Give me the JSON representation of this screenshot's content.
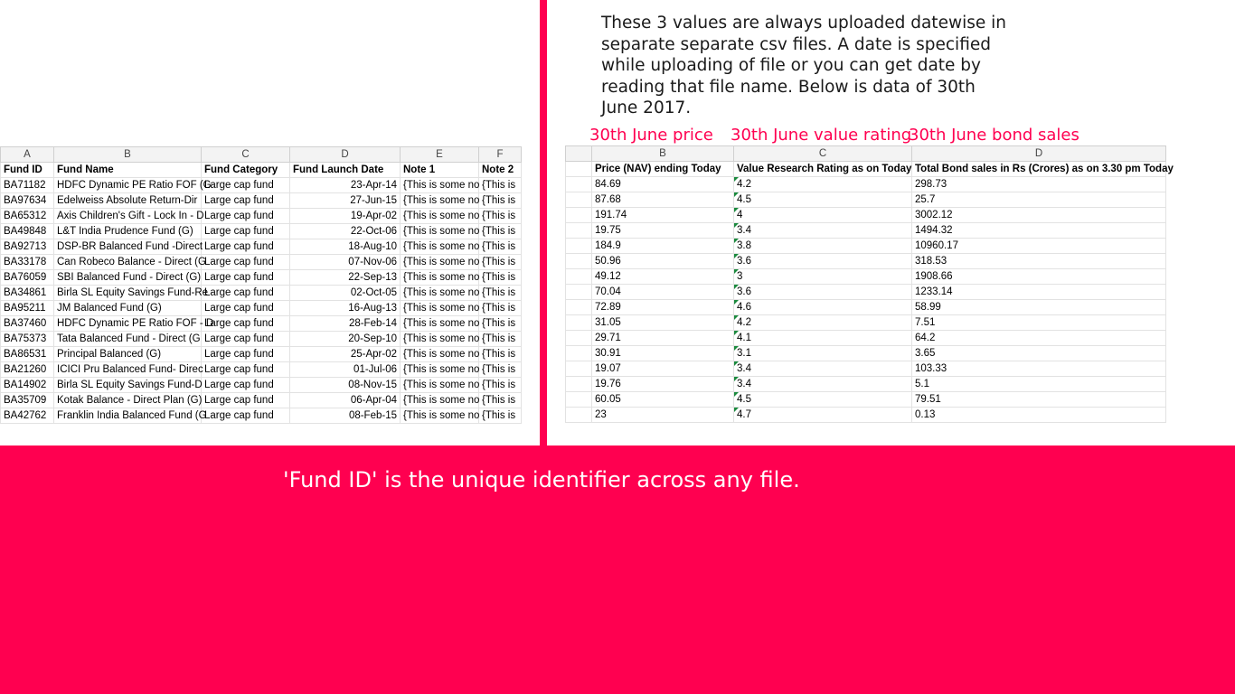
{
  "intro_text": "These 3 values are always uploaded datewise in separate separate csv files. A date is specified while uploading of file or you can get date by reading that file name. Below is data of 30th June 2017.",
  "captions": [
    "30th June price",
    "30th June value rating",
    "30th June bond sales"
  ],
  "left_sheet": {
    "column_letters": [
      "A",
      "B",
      "C",
      "D",
      "E",
      "F"
    ],
    "headers": [
      "Fund ID",
      "Fund Name",
      "Fund Category",
      "Fund Launch Date",
      "Note 1",
      "Note 2"
    ],
    "rows": [
      [
        "BA71182",
        "HDFC Dynamic PE Ratio FOF (G",
        "Large cap fund",
        "23-Apr-14",
        "{This is some no",
        "{This is"
      ],
      [
        "BA97634",
        "Edelweiss Absolute Return-Dir",
        "Large cap fund",
        "27-Jun-15",
        "{This is some no",
        "{This is"
      ],
      [
        "BA65312",
        "Axis Children's Gift - Lock In - D",
        "Large cap fund",
        "19-Apr-02",
        "{This is some no",
        "{This is"
      ],
      [
        "BA49848",
        "L&T India Prudence Fund (G)",
        "Large cap fund",
        "22-Oct-06",
        "{This is some no",
        "{This is"
      ],
      [
        "BA92713",
        "DSP-BR Balanced Fund -Direct",
        "Large cap fund",
        "18-Aug-10",
        "{This is some no",
        "{This is"
      ],
      [
        "BA33178",
        "Can Robeco Balance - Direct (G",
        "Large cap fund",
        "07-Nov-06",
        "{This is some no",
        "{This is"
      ],
      [
        "BA76059",
        "SBI Balanced Fund - Direct (G)",
        "Large cap fund",
        "22-Sep-13",
        "{This is some no",
        "{This is"
      ],
      [
        "BA34861",
        "Birla SL Equity Savings Fund-Re",
        "Large cap fund",
        "02-Oct-05",
        "{This is some no",
        "{This is"
      ],
      [
        "BA95211",
        "JM Balanced Fund (G)",
        "Large cap fund",
        "16-Aug-13",
        "{This is some no",
        "{This is"
      ],
      [
        "BA37460",
        "HDFC Dynamic PE Ratio FOF - D",
        "Large cap fund",
        "28-Feb-14",
        "{This is some no",
        "{This is"
      ],
      [
        "BA75373",
        "Tata Balanced Fund - Direct (G",
        "Large cap fund",
        "20-Sep-10",
        "{This is some no",
        "{This is"
      ],
      [
        "BA86531",
        "Principal Balanced (G)",
        "Large cap fund",
        "25-Apr-02",
        "{This is some no",
        "{This is"
      ],
      [
        "BA21260",
        "ICICI Pru Balanced Fund- Direc",
        "Large cap fund",
        "01-Jul-06",
        "{This is some no",
        "{This is"
      ],
      [
        "BA14902",
        "Birla SL Equity Savings Fund-D",
        "Large cap fund",
        "08-Nov-15",
        "{This is some no",
        "{This is"
      ],
      [
        "BA35709",
        "Kotak Balance - Direct Plan (G)",
        "Large cap fund",
        "06-Apr-04",
        "{This is some no",
        "{This is"
      ],
      [
        "BA42762",
        "Franklin India Balanced Fund (G",
        "Large cap fund",
        "08-Feb-15",
        "{This is some no",
        "{This is"
      ]
    ]
  },
  "right_sheet": {
    "column_letters": [
      "B",
      "C",
      "D"
    ],
    "headers": [
      "Price (NAV) ending Today",
      "Value Research Rating as on Today",
      "Total Bond sales in Rs (Crores) as on 3.30 pm Today"
    ],
    "rows": [
      [
        "84.69",
        "4.2",
        "298.73"
      ],
      [
        "87.68",
        "4.5",
        "25.7"
      ],
      [
        "191.74",
        "4",
        "3002.12"
      ],
      [
        "19.75",
        "3.4",
        "1494.32"
      ],
      [
        "184.9",
        "3.8",
        "10960.17"
      ],
      [
        "50.96",
        "3.6",
        "318.53"
      ],
      [
        "49.12",
        "3",
        "1908.66"
      ],
      [
        "70.04",
        "3.6",
        "1233.14"
      ],
      [
        "72.89",
        "4.6",
        "58.99"
      ],
      [
        "31.05",
        "4.2",
        "7.51"
      ],
      [
        "29.71",
        "4.1",
        "64.2"
      ],
      [
        "30.91",
        "3.1",
        "3.65"
      ],
      [
        "19.07",
        "3.4",
        "103.33"
      ],
      [
        "19.76",
        "3.4",
        "5.1"
      ],
      [
        "60.05",
        "4.5",
        "79.51"
      ],
      [
        "23",
        "4.7",
        "0.13"
      ]
    ]
  },
  "banner_text": "'Fund ID' is the unique identifier across any file.",
  "colors": {
    "accent": "#ff0050",
    "indicator": "#1b8a3e"
  }
}
